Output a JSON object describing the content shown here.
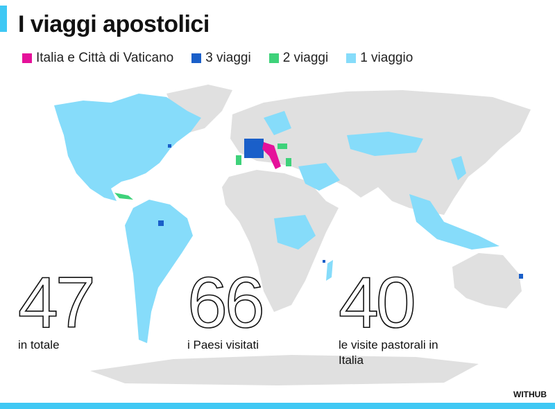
{
  "title": "I viaggi apostolici",
  "legend": [
    {
      "label": "Italia e Città di Vaticano",
      "color": "#e5119a"
    },
    {
      "label": "3 viaggi",
      "color": "#1a5fc9"
    },
    {
      "label": "2 viaggi",
      "color": "#3ed27a"
    },
    {
      "label": "1 viaggio",
      "color": "#86dcfa"
    }
  ],
  "stats": [
    {
      "value": "47",
      "label": "in totale"
    },
    {
      "value": "66",
      "label": "i Paesi visitati"
    },
    {
      "value": "40",
      "label": "le visite pastorali in Italia"
    }
  ],
  "brand": "WITHUB",
  "colors": {
    "accent": "#3fc8f4",
    "land": "#e0e0e0"
  }
}
